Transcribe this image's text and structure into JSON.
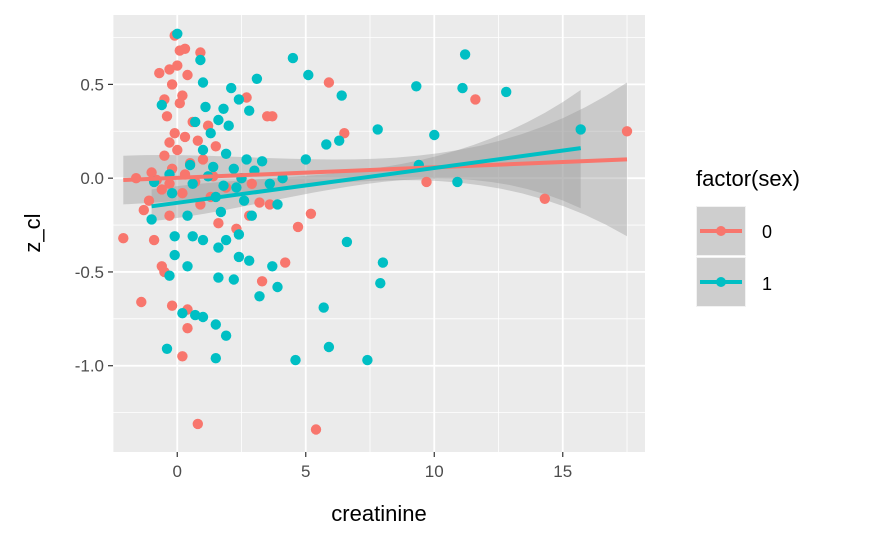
{
  "chart_data": {
    "type": "scatter",
    "xlabel": "creatinine",
    "ylabel": "z_cl",
    "xlim": [
      -2.5,
      18.2
    ],
    "ylim": [
      -1.46,
      0.87
    ],
    "x_ticks": [
      0,
      5,
      10,
      15
    ],
    "x_tick_labels": [
      "0",
      "5",
      "10",
      "15"
    ],
    "y_ticks": [
      -1.0,
      -0.5,
      0.0,
      0.5
    ],
    "y_tick_labels": [
      "-1.0",
      "-0.5",
      "0.0",
      "0.5"
    ],
    "grid": true,
    "legend": {
      "title": "factor(sex)",
      "position": "right",
      "entries": [
        "0",
        "1"
      ]
    },
    "colors": {
      "0": "#F8766D",
      "1": "#00BFC4",
      "panel": "#EBEBEB",
      "ribbon": "#999999"
    },
    "series": [
      {
        "name": "0",
        "color": "#F8766D",
        "points": [
          [
            -0.1,
            0.76
          ],
          [
            0.0,
            0.6
          ],
          [
            0.1,
            0.68
          ],
          [
            0.3,
            0.69
          ],
          [
            0.9,
            0.67
          ],
          [
            -0.7,
            0.56
          ],
          [
            -0.3,
            0.58
          ],
          [
            0.4,
            0.55
          ],
          [
            -0.2,
            0.5
          ],
          [
            0.2,
            0.44
          ],
          [
            -0.5,
            0.42
          ],
          [
            0.1,
            0.4
          ],
          [
            -0.4,
            0.33
          ],
          [
            0.6,
            0.3
          ],
          [
            1.2,
            0.28
          ],
          [
            -0.1,
            0.24
          ],
          [
            0.3,
            0.22
          ],
          [
            0.8,
            0.2
          ],
          [
            -0.3,
            0.19
          ],
          [
            1.5,
            0.17
          ],
          [
            0.0,
            0.15
          ],
          [
            -0.5,
            0.12
          ],
          [
            1.0,
            0.1
          ],
          [
            0.5,
            0.08
          ],
          [
            -0.2,
            0.05
          ],
          [
            -1.0,
            0.03
          ],
          [
            0.3,
            0.02
          ],
          [
            1.4,
            0.01
          ],
          [
            -1.6,
            0.0
          ],
          [
            2.5,
            0.0
          ],
          [
            -0.8,
            -0.01
          ],
          [
            0.7,
            -0.02
          ],
          [
            -0.3,
            -0.03
          ],
          [
            2.9,
            -0.03
          ],
          [
            1.9,
            -0.05
          ],
          [
            -0.6,
            -0.06
          ],
          [
            0.2,
            -0.08
          ],
          [
            1.3,
            -0.1
          ],
          [
            -1.1,
            -0.12
          ],
          [
            0.9,
            -0.14
          ],
          [
            -1.3,
            -0.17
          ],
          [
            -0.3,
            -0.2
          ],
          [
            3.2,
            -0.13
          ],
          [
            3.6,
            -0.14
          ],
          [
            2.8,
            -0.2
          ],
          [
            5.2,
            -0.19
          ],
          [
            4.7,
            -0.26
          ],
          [
            1.6,
            -0.24
          ],
          [
            -2.1,
            -0.32
          ],
          [
            -0.9,
            -0.33
          ],
          [
            2.3,
            -0.27
          ],
          [
            -0.6,
            -0.47
          ],
          [
            -0.5,
            -0.5
          ],
          [
            4.2,
            -0.45
          ],
          [
            3.3,
            -0.55
          ],
          [
            -1.4,
            -0.66
          ],
          [
            -0.2,
            -0.68
          ],
          [
            0.4,
            -0.7
          ],
          [
            0.4,
            -0.8
          ],
          [
            0.2,
            -0.95
          ],
          [
            5.9,
            0.51
          ],
          [
            2.7,
            0.43
          ],
          [
            3.5,
            0.33
          ],
          [
            3.7,
            0.33
          ],
          [
            6.5,
            0.24
          ],
          [
            11.6,
            0.42
          ],
          [
            14.3,
            -0.11
          ],
          [
            17.5,
            0.25
          ],
          [
            9.7,
            -0.02
          ],
          [
            0.8,
            -1.31
          ],
          [
            5.4,
            -1.34
          ]
        ]
      },
      {
        "name": "1",
        "color": "#00BFC4",
        "points": [
          [
            0.0,
            0.77
          ],
          [
            0.9,
            0.63
          ],
          [
            4.5,
            0.64
          ],
          [
            5.1,
            0.55
          ],
          [
            11.2,
            0.66
          ],
          [
            3.1,
            0.53
          ],
          [
            1.0,
            0.51
          ],
          [
            2.1,
            0.48
          ],
          [
            9.3,
            0.49
          ],
          [
            11.1,
            0.48
          ],
          [
            12.8,
            0.46
          ],
          [
            6.4,
            0.44
          ],
          [
            -0.6,
            0.39
          ],
          [
            2.4,
            0.42
          ],
          [
            1.1,
            0.38
          ],
          [
            1.8,
            0.37
          ],
          [
            2.8,
            0.36
          ],
          [
            0.7,
            0.3
          ],
          [
            1.6,
            0.31
          ],
          [
            2.0,
            0.28
          ],
          [
            7.8,
            0.26
          ],
          [
            15.7,
            0.26
          ],
          [
            1.3,
            0.24
          ],
          [
            6.3,
            0.2
          ],
          [
            5.8,
            0.18
          ],
          [
            10.0,
            0.23
          ],
          [
            1.0,
            0.15
          ],
          [
            1.9,
            0.13
          ],
          [
            2.7,
            0.1
          ],
          [
            3.3,
            0.09
          ],
          [
            5.0,
            0.1
          ],
          [
            0.5,
            0.07
          ],
          [
            1.4,
            0.06
          ],
          [
            2.2,
            0.05
          ],
          [
            3.0,
            0.04
          ],
          [
            9.4,
            0.07
          ],
          [
            -0.3,
            0.02
          ],
          [
            1.2,
            0.01
          ],
          [
            2.5,
            0.0
          ],
          [
            4.1,
            0.0
          ],
          [
            -0.9,
            -0.02
          ],
          [
            0.6,
            -0.03
          ],
          [
            1.8,
            -0.04
          ],
          [
            2.3,
            -0.05
          ],
          [
            3.6,
            -0.03
          ],
          [
            10.9,
            -0.02
          ],
          [
            -0.2,
            -0.08
          ],
          [
            1.5,
            -0.1
          ],
          [
            2.6,
            -0.12
          ],
          [
            3.9,
            -0.14
          ],
          [
            -1.0,
            -0.22
          ],
          [
            0.4,
            -0.2
          ],
          [
            1.7,
            -0.18
          ],
          [
            2.9,
            -0.2
          ],
          [
            -0.1,
            -0.31
          ],
          [
            0.6,
            -0.31
          ],
          [
            1.0,
            -0.33
          ],
          [
            1.9,
            -0.33
          ],
          [
            2.4,
            -0.3
          ],
          [
            6.6,
            -0.34
          ],
          [
            -0.1,
            -0.41
          ],
          [
            0.4,
            -0.47
          ],
          [
            1.6,
            -0.37
          ],
          [
            2.4,
            -0.42
          ],
          [
            2.8,
            -0.44
          ],
          [
            3.7,
            -0.47
          ],
          [
            -0.3,
            -0.52
          ],
          [
            1.6,
            -0.53
          ],
          [
            2.2,
            -0.54
          ],
          [
            3.2,
            -0.63
          ],
          [
            3.9,
            -0.58
          ],
          [
            8.0,
            -0.45
          ],
          [
            7.9,
            -0.56
          ],
          [
            5.7,
            -0.69
          ],
          [
            0.2,
            -0.72
          ],
          [
            0.7,
            -0.73
          ],
          [
            1.0,
            -0.74
          ],
          [
            1.5,
            -0.78
          ],
          [
            1.9,
            -0.84
          ],
          [
            -0.4,
            -0.91
          ],
          [
            1.5,
            -0.96
          ],
          [
            4.6,
            -0.97
          ],
          [
            5.9,
            -0.9
          ],
          [
            7.4,
            -0.97
          ]
        ]
      }
    ],
    "fits": [
      {
        "name": "0",
        "color": "#F8766D",
        "x": [
          -2.1,
          17.5
        ],
        "y": [
          -0.01,
          0.1
        ],
        "ci_low": [
          -0.14,
          -0.31
        ],
        "ci_high": [
          0.12,
          0.51
        ]
      },
      {
        "name": "1",
        "color": "#00BFC4",
        "x": [
          -1.0,
          15.7
        ],
        "y": [
          -0.15,
          0.16
        ],
        "ci_low": [
          -0.23,
          -0.16
        ],
        "ci_high": [
          -0.06,
          0.47
        ]
      }
    ]
  }
}
